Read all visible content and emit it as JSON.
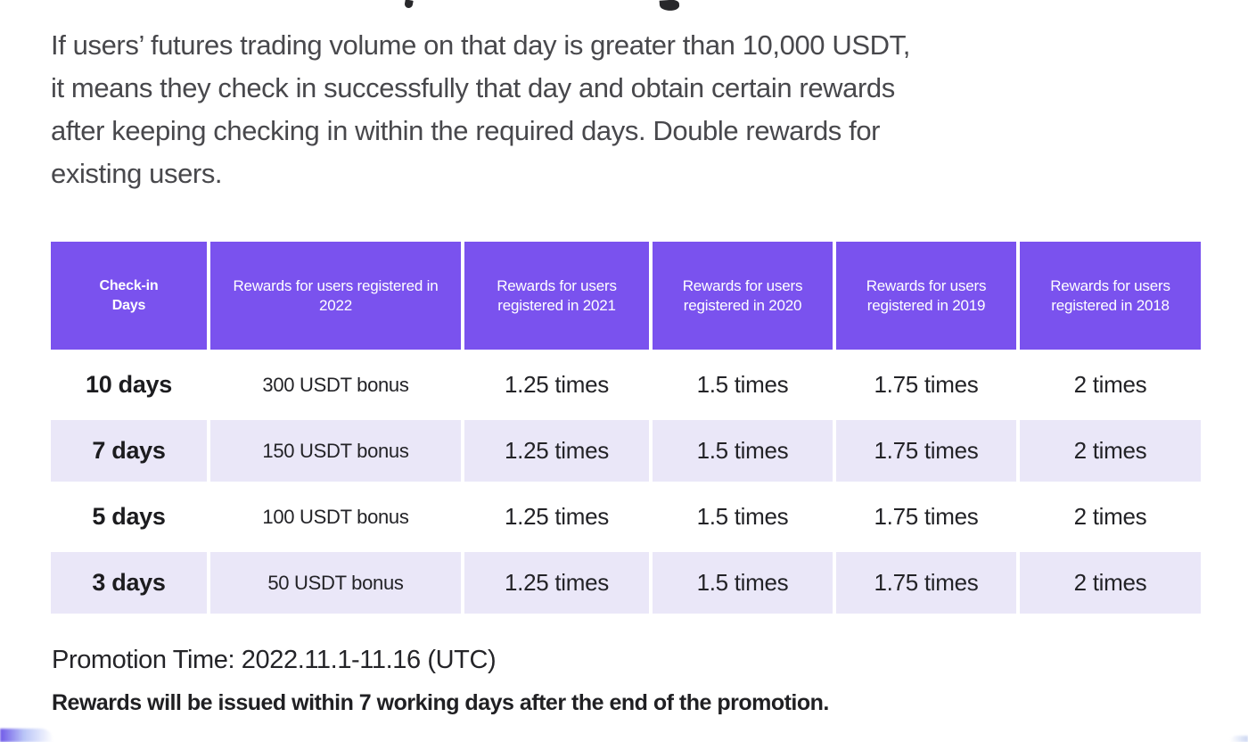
{
  "intro": {
    "lines": [
      "If users’ futures trading volume on that day is greater than 10,000 USDT,",
      "it means they check in successfully that day and obtain certain rewards",
      "after keeping checking in within the required days. Double rewards for",
      "existing users."
    ]
  },
  "table": {
    "headers": [
      "Check-in Days",
      "Rewards for users registered in 2022",
      "Rewards for users registered in 2021",
      "Rewards for users registered in 2020",
      "Rewards for users registered in 2019",
      "Rewards for users registered in 2018"
    ],
    "rows": [
      [
        "10 days",
        "300 USDT bonus",
        "1.25 times",
        "1.5 times",
        "1.75 times",
        "2 times"
      ],
      [
        "7 days",
        "150 USDT bonus",
        "1.25 times",
        "1.5 times",
        "1.75 times",
        "2 times"
      ],
      [
        "5 days",
        "100 USDT bonus",
        "1.25 times",
        "1.5 times",
        "1.75 times",
        "2 times"
      ],
      [
        "3 days",
        "50 USDT bonus",
        "1.25 times",
        "1.5 times",
        "1.75 times",
        "2 times"
      ]
    ]
  },
  "footer": {
    "promotion_time": "Promotion Time: 2022.11.1-11.16 (UTC)",
    "note": "Rewards will be issued within 7 working days after the end of the promotion."
  },
  "colors": {
    "header_purple": "#7A52EE",
    "row_lavender": "#EAE7F8",
    "body_text": "#48484C"
  }
}
